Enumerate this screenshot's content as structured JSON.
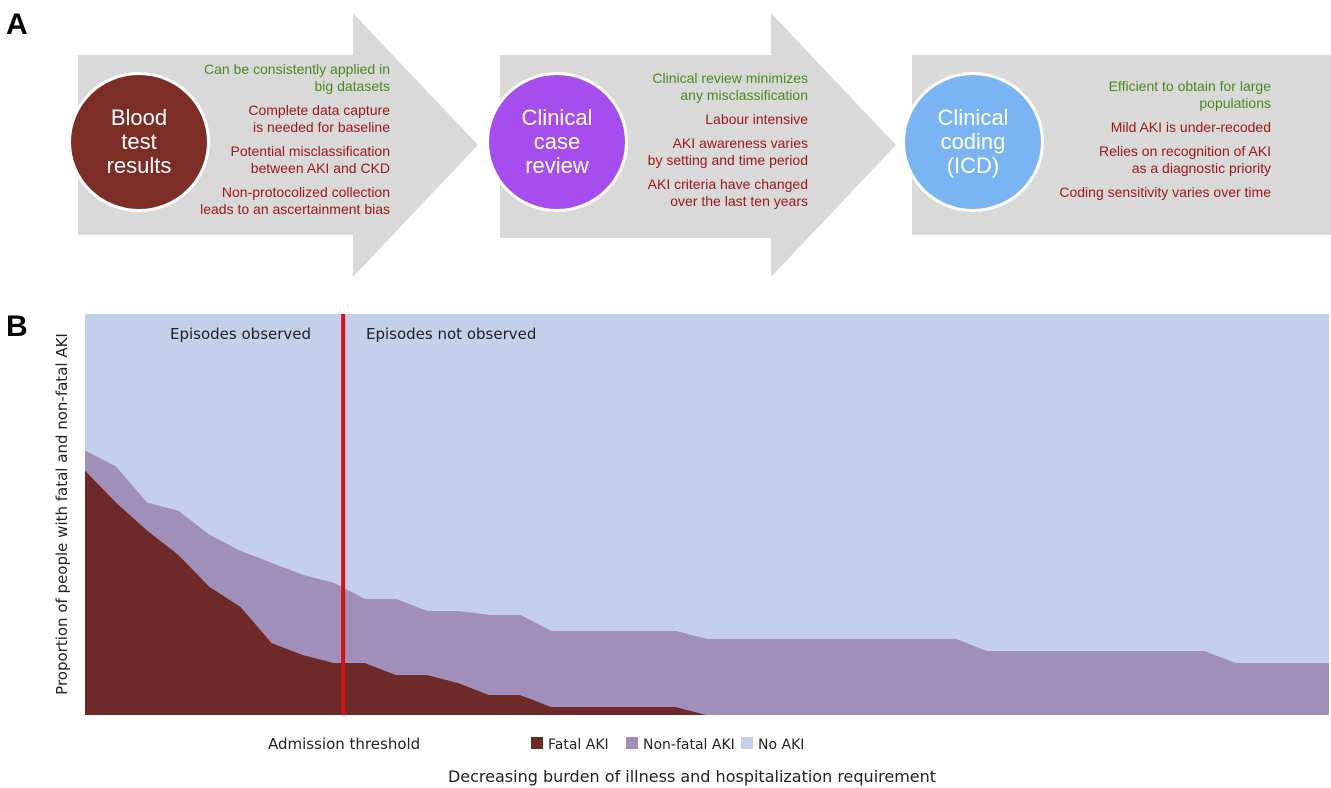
{
  "panel_a": {
    "letter": "A",
    "steps": [
      {
        "circle_label": "Blood\ntest\nresults",
        "circle_color": "#7b2d26",
        "points": [
          {
            "text": "Can be consistently applied in\nbig datasets",
            "tone": "positive"
          },
          {
            "text": "Complete data capture\nis needed for baseline",
            "tone": "negative"
          },
          {
            "text": "Potential misclassification\nbetween AKI and CKD",
            "tone": "negative"
          },
          {
            "text": "Non-protocolized collection\nleads to an ascertainment bias",
            "tone": "negative"
          }
        ]
      },
      {
        "circle_label": "Clinical\ncase\nreview",
        "circle_color": "#a64dee",
        "points": [
          {
            "text": "Clinical review minimizes\nany misclassification",
            "tone": "positive"
          },
          {
            "text": "Labour intensive",
            "tone": "negative"
          },
          {
            "text": "AKI awareness varies\nby setting and time period",
            "tone": "negative"
          },
          {
            "text": "AKI criteria have changed\nover the last ten years",
            "tone": "negative"
          }
        ]
      },
      {
        "circle_label": "Clinical\ncoding\n(ICD)",
        "circle_color": "#7ab4f2",
        "points": [
          {
            "text": "Efficient to obtain for large\npopulations",
            "tone": "positive"
          },
          {
            "text": "Mild AKI is under-recoded",
            "tone": "negative"
          },
          {
            "text": "Relies on recognition of AKI\nas a diagnostic priority",
            "tone": "negative"
          },
          {
            "text": "Coding sensitivity varies over time",
            "tone": "negative"
          }
        ]
      }
    ],
    "colors": {
      "positive": "#4a8a1d",
      "negative": "#a01818",
      "arrow": "#d9d9d9"
    }
  },
  "panel_b": {
    "letter": "B",
    "ylabel": "Proportion of people with fatal and non-fatal AKI",
    "xlabel": "Decreasing burden of illness and hospitalization requirement",
    "region_left": "Episodes observed",
    "region_right": "Episodes not observed",
    "threshold_label": "Admission threshold",
    "threshold_color": "#d4141a",
    "legend": [
      {
        "label": "Fatal AKI",
        "color": "#6e2a28"
      },
      {
        "label": "Non-fatal AKI",
        "color": "#a08fb8"
      },
      {
        "label": "No AKI",
        "color": "#c3cfeb"
      }
    ]
  },
  "chart_data": {
    "type": "area",
    "stacked": true,
    "x": [
      0,
      1,
      2,
      3,
      4,
      5,
      6,
      7,
      8,
      9,
      10,
      11,
      12,
      13,
      14,
      15,
      16,
      17,
      18,
      19,
      20,
      21,
      22,
      23,
      24,
      25,
      26,
      27,
      28,
      29,
      30,
      31,
      32,
      33,
      34,
      35,
      36,
      37,
      38,
      39,
      40
    ],
    "threshold_x": 8.3,
    "ylim": [
      0,
      1
    ],
    "series": [
      {
        "name": "Fatal AKI",
        "color": "#6e2a28",
        "values": [
          0.61,
          0.53,
          0.46,
          0.4,
          0.32,
          0.27,
          0.18,
          0.15,
          0.13,
          0.13,
          0.1,
          0.1,
          0.08,
          0.05,
          0.05,
          0.02,
          0.02,
          0.02,
          0.02,
          0.02,
          0,
          0,
          0,
          0,
          0,
          0,
          0,
          0,
          0,
          0,
          0,
          0,
          0,
          0,
          0,
          0,
          0,
          0,
          0,
          0,
          0
        ]
      },
      {
        "name": "Non-fatal AKI",
        "color": "#a08fb8",
        "values": [
          0.05,
          0.09,
          0.07,
          0.11,
          0.13,
          0.14,
          0.2,
          0.2,
          0.2,
          0.16,
          0.19,
          0.16,
          0.18,
          0.2,
          0.2,
          0.19,
          0.19,
          0.19,
          0.19,
          0.19,
          0.19,
          0.19,
          0.19,
          0.19,
          0.19,
          0.19,
          0.19,
          0.19,
          0.19,
          0.16,
          0.16,
          0.16,
          0.16,
          0.16,
          0.16,
          0.16,
          0.16,
          0.13,
          0.13,
          0.13,
          0.13
        ]
      },
      {
        "name": "No AKI",
        "color": "#c3cfeb",
        "values": [
          0.34,
          0.38,
          0.47,
          0.49,
          0.55,
          0.59,
          0.62,
          0.65,
          0.67,
          0.71,
          0.71,
          0.74,
          0.74,
          0.75,
          0.75,
          0.79,
          0.79,
          0.79,
          0.79,
          0.79,
          0.81,
          0.81,
          0.81,
          0.81,
          0.81,
          0.81,
          0.81,
          0.81,
          0.81,
          0.84,
          0.84,
          0.84,
          0.84,
          0.84,
          0.84,
          0.84,
          0.84,
          0.87,
          0.87,
          0.87,
          0.87
        ]
      }
    ]
  }
}
